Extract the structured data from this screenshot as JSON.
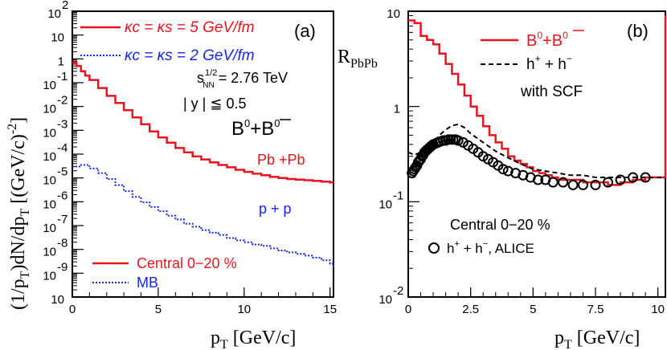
{
  "chart_data": [
    {
      "type": "line",
      "panel_label": "(a)",
      "xlabel_main": "p",
      "xlabel_sub": "T",
      "xlabel_rest": " [GeV/c]",
      "ylabel": "(1/pT)dN/dpT [(GeV/c)^-2]",
      "ylabel_parts": [
        "(1/p",
        "T",
        ")dN/dp",
        "T",
        " [(GeV/c)",
        "-2",
        "]"
      ],
      "xlim": [
        0,
        15.2
      ],
      "ylim": [
        1e-10,
        100
      ],
      "yscale": "log",
      "x_ticks": [
        "0",
        "5",
        "10",
        "15"
      ],
      "x_tick_values": [
        0,
        5,
        10,
        15
      ],
      "y_ticks": [
        {
          "base": "10",
          "exp": "2",
          "value": 100
        },
        {
          "base": "10",
          "exp": "",
          "value": 10
        },
        {
          "base": "1",
          "exp": "",
          "value": 1
        },
        {
          "base": "10",
          "exp": "-1",
          "value": 0.1
        },
        {
          "base": "10",
          "exp": "-2",
          "value": 0.01
        },
        {
          "base": "10",
          "exp": "-3",
          "value": 0.001
        },
        {
          "base": "10",
          "exp": "-4",
          "value": 0.0001
        },
        {
          "base": "10",
          "exp": "-5",
          "value": 1e-05
        },
        {
          "base": "10",
          "exp": "-6",
          "value": 1e-06
        },
        {
          "base": "10",
          "exp": "-7",
          "value": 1e-07
        },
        {
          "base": "10",
          "exp": "-8",
          "value": 1e-08
        },
        {
          "base": "10",
          "exp": "-9",
          "value": 1e-09
        },
        {
          "base": "10",
          "exp": "",
          "value": 1e-10
        }
      ],
      "legend_top": [
        {
          "label": "κc = κs = 5 GeV/fm",
          "color": "#e8141e",
          "style": "solid"
        },
        {
          "label": "κc = κs = 2 GeV/fm",
          "color": "#1428e6",
          "style": "dotted"
        }
      ],
      "legend_bottom": [
        {
          "label": "Central 0−20 %",
          "color": "#e8141e",
          "style": "solid"
        },
        {
          "label": "MB",
          "color": "#1428e6",
          "style": "dotted"
        }
      ],
      "annotations": {
        "energy_s": "s",
        "energy_sub": "NN",
        "energy_sup": "1/2",
        "energy_value": " = 2.76 TeV",
        "rapidity": "| y | ≦ 0.5",
        "particle": "B",
        "particle_sup": "0",
        "particle_plus": "+B",
        "particle_bar_sup": "0",
        "pbpb": "Pb +Pb",
        "pp": "p + p"
      },
      "series": [
        {
          "name": "Pb +Pb",
          "color": "#e8141e",
          "style": "solid",
          "x": [
            0,
            0.25,
            0.5,
            0.75,
            1,
            1.5,
            2,
            2.5,
            3,
            3.5,
            4,
            4.5,
            5,
            5.5,
            6,
            6.5,
            7,
            7.5,
            8,
            8.5,
            9,
            9.5,
            10,
            10.5,
            11,
            11.5,
            12,
            12.5,
            13,
            13.5,
            14,
            14.5,
            15,
            15.2
          ],
          "y": [
            0.7,
            0.5,
            0.3,
            0.2,
            0.13,
            0.06,
            0.028,
            0.014,
            0.007,
            0.0035,
            0.0018,
            0.0009,
            0.0005,
            0.0003,
            0.00018,
            0.00012,
            8e-05,
            6e-05,
            4.5e-05,
            3.5e-05,
            2.8e-05,
            2.2e-05,
            1.8e-05,
            1.5e-05,
            1.3e-05,
            1.1e-05,
            1e-05,
            9e-06,
            8.5e-06,
            8e-06,
            7.5e-06,
            7e-06,
            6.5e-06,
            6.5e-06
          ]
        },
        {
          "name": "p + p",
          "color": "#1428e6",
          "style": "dotted",
          "x": [
            0,
            0.5,
            1,
            1.5,
            2,
            2.5,
            3,
            3.5,
            4,
            4.5,
            5,
            5.5,
            6,
            6.5,
            7,
            7.5,
            8,
            8.5,
            9,
            9.5,
            10,
            10.5,
            11,
            11.5,
            12,
            12.5,
            13,
            13.5,
            14,
            14.5,
            15,
            15.2
          ],
          "y": [
            3e-05,
            3.5e-05,
            2.5e-05,
            1.6e-05,
            9e-06,
            5e-06,
            2.8e-06,
            1.6e-06,
            9.5e-07,
            6e-07,
            4e-07,
            2.6e-07,
            1.8e-07,
            1.2e-07,
            9e-08,
            6.5e-08,
            5e-08,
            4e-08,
            3e-08,
            2.4e-08,
            2e-08,
            1.6e-08,
            1.4e-08,
            1.1e-08,
            9e-09,
            7.5e-09,
            6.5e-09,
            5.5e-09,
            4.5e-09,
            3.5e-09,
            2.5e-09,
            1.8e-09
          ]
        }
      ]
    },
    {
      "type": "line",
      "panel_label": "(b)",
      "ylabel_main": "R",
      "ylabel_sub": "PbPb",
      "xlabel_main": "p",
      "xlabel_sub": "T",
      "xlabel_rest": " [GeV/c]",
      "xlim": [
        0,
        10.3
      ],
      "ylim": [
        0.01,
        10
      ],
      "yscale": "log",
      "x_ticks": [
        "0",
        "2.5",
        "5",
        "7.5",
        "10"
      ],
      "x_tick_values": [
        0,
        2.5,
        5,
        7.5,
        10
      ],
      "y_ticks": [
        {
          "base": "10",
          "exp": "",
          "value": 10
        },
        {
          "base": "1",
          "exp": "",
          "value": 1
        },
        {
          "base": "10",
          "exp": "-1",
          "value": 0.1
        },
        {
          "base": "10",
          "exp": "-2",
          "value": 0.01
        }
      ],
      "legend": [
        {
          "label": "B",
          "sup": "0",
          "label2": "+B",
          "sup2": "0",
          "color": "#e8141e",
          "style": "solid"
        },
        {
          "label": "h",
          "sup": "+",
          "label2": " + h",
          "sup2": "−",
          "color": "#000000",
          "style": "dashed"
        }
      ],
      "annotations": {
        "scf": "with SCF",
        "centrality": "Central 0−20 %",
        "alice_h": "h",
        "alice_sup1": "+",
        "alice_mid": " + h",
        "alice_sup2": "−",
        "alice_rest": ", ALICE"
      },
      "series": [
        {
          "name": "B0 + B0bar",
          "color": "#e8141e",
          "style": "solid",
          "x": [
            0,
            0.25,
            0.5,
            0.75,
            1,
            1.25,
            1.5,
            1.75,
            2,
            2.25,
            2.5,
            2.75,
            3,
            3.25,
            3.5,
            3.75,
            4,
            4.25,
            4.5,
            4.75,
            5,
            5.25,
            5.5,
            5.75,
            6,
            6.5,
            7,
            7.5,
            8,
            8.5,
            9,
            9.5,
            10,
            10.3
          ],
          "y": [
            8,
            7.5,
            5.5,
            5,
            4.5,
            3.6,
            2.8,
            2.2,
            1.7,
            1.3,
            1.0,
            0.8,
            0.62,
            0.5,
            0.42,
            0.36,
            0.3,
            0.27,
            0.25,
            0.23,
            0.21,
            0.2,
            0.19,
            0.18,
            0.17,
            0.17,
            0.16,
            0.16,
            0.15,
            0.16,
            0.17,
            0.18,
            0.18,
            9
          ]
        },
        {
          "name": "h+ + h- with SCF",
          "color": "#000000",
          "style": "dashed",
          "x": [
            0,
            0.25,
            0.5,
            0.75,
            1,
            1.25,
            1.5,
            1.75,
            2,
            2.25,
            2.5,
            3,
            3.5,
            4,
            4.5,
            5,
            5.5,
            6,
            6.5,
            7,
            7.5,
            8,
            8.5,
            9,
            9.5,
            10,
            10.3
          ],
          "y": [
            0.33,
            0.31,
            0.33,
            0.36,
            0.42,
            0.5,
            0.57,
            0.63,
            0.65,
            0.6,
            0.52,
            0.42,
            0.34,
            0.29,
            0.25,
            0.22,
            0.21,
            0.2,
            0.19,
            0.19,
            0.18,
            0.18,
            0.18,
            0.18,
            0.18,
            0.18,
            0.18
          ]
        },
        {
          "name": "h+ + h-, ALICE",
          "color": "#000000",
          "style": "markers",
          "x": [
            0.15,
            0.2,
            0.25,
            0.3,
            0.35,
            0.4,
            0.45,
            0.5,
            0.55,
            0.6,
            0.65,
            0.7,
            0.75,
            0.8,
            0.85,
            0.9,
            0.95,
            1.0,
            1.1,
            1.2,
            1.3,
            1.4,
            1.5,
            1.6,
            1.7,
            1.8,
            1.9,
            2.0,
            2.2,
            2.4,
            2.6,
            2.8,
            3.0,
            3.2,
            3.4,
            3.6,
            3.8,
            4.0,
            4.3,
            4.6,
            4.9,
            5.2,
            5.5,
            5.8,
            6.2,
            6.6,
            7.0,
            7.5,
            8.0,
            8.5,
            9.0,
            9.5
          ],
          "y": [
            0.2,
            0.21,
            0.22,
            0.23,
            0.24,
            0.26,
            0.27,
            0.28,
            0.3,
            0.31,
            0.33,
            0.34,
            0.35,
            0.36,
            0.37,
            0.38,
            0.39,
            0.4,
            0.41,
            0.42,
            0.43,
            0.44,
            0.44,
            0.45,
            0.45,
            0.45,
            0.45,
            0.44,
            0.42,
            0.39,
            0.36,
            0.33,
            0.3,
            0.28,
            0.26,
            0.24,
            0.22,
            0.21,
            0.2,
            0.19,
            0.18,
            0.17,
            0.17,
            0.16,
            0.16,
            0.15,
            0.15,
            0.15,
            0.16,
            0.17,
            0.18,
            0.18
          ]
        }
      ]
    }
  ]
}
